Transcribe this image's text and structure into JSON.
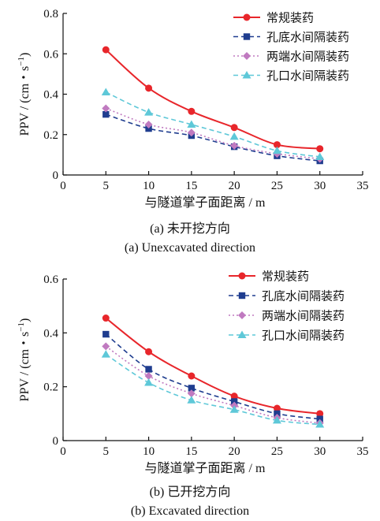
{
  "chart_data": [
    {
      "type": "line",
      "caption_cn": "(a) 未开挖方向",
      "caption_en": "(a) Unexcavated direction",
      "xlabel": "与隧道掌子面距离 / m",
      "ylabel": "PPV / (cm・s",
      "ylabel_sup": "−1",
      "ylabel_end": ")",
      "xlim": [
        0,
        35
      ],
      "ylim": [
        0,
        0.8
      ],
      "xticks": [
        "0",
        "5",
        "10",
        "15",
        "20",
        "25",
        "30",
        "35"
      ],
      "yticks": [
        "0",
        "0.2",
        "0.4",
        "0.6",
        "0.8"
      ],
      "x": [
        5,
        10,
        15,
        20,
        25,
        30
      ],
      "legend_position": "top-right",
      "series": [
        {
          "name": "常规装药",
          "values": [
            0.62,
            0.43,
            0.315,
            0.235,
            0.15,
            0.13
          ],
          "color": "#e8262b",
          "marker": "circle",
          "dash": "solid"
        },
        {
          "name": "孔底水间隔装药",
          "values": [
            0.3,
            0.23,
            0.195,
            0.14,
            0.095,
            0.07
          ],
          "color": "#1f3d8f",
          "marker": "square",
          "dash": "dashed"
        },
        {
          "name": "两端水间隔装药",
          "values": [
            0.33,
            0.25,
            0.21,
            0.145,
            0.105,
            0.08
          ],
          "color": "#c07ac0",
          "marker": "diamond",
          "dash": "dotted"
        },
        {
          "name": "孔口水间隔装药",
          "values": [
            0.41,
            0.31,
            0.25,
            0.19,
            0.12,
            0.09
          ],
          "color": "#5ec8d8",
          "marker": "triangle",
          "dash": "dashed"
        }
      ]
    },
    {
      "type": "line",
      "caption_cn": "(b) 已开挖方向",
      "caption_en": "(b) Excavated direction",
      "xlabel": "与隧道掌子面距离 / m",
      "ylabel": "PPV / (cm・s",
      "ylabel_sup": "−1",
      "ylabel_end": ")",
      "xlim": [
        0,
        35
      ],
      "ylim": [
        0,
        0.6
      ],
      "xticks": [
        "0",
        "5",
        "10",
        "15",
        "20",
        "25",
        "30",
        "35"
      ],
      "yticks": [
        "0",
        "0.2",
        "0.4",
        "0.6"
      ],
      "x": [
        5,
        10,
        15,
        20,
        25,
        30
      ],
      "legend_position": "top-right",
      "series": [
        {
          "name": "常规装药",
          "values": [
            0.455,
            0.33,
            0.24,
            0.165,
            0.12,
            0.1
          ],
          "color": "#e8262b",
          "marker": "circle",
          "dash": "solid"
        },
        {
          "name": "孔底水间隔装药",
          "values": [
            0.395,
            0.265,
            0.195,
            0.145,
            0.1,
            0.08
          ],
          "color": "#1f3d8f",
          "marker": "square",
          "dash": "dashed"
        },
        {
          "name": "两端水间隔装药",
          "values": [
            0.35,
            0.24,
            0.175,
            0.13,
            0.085,
            0.065
          ],
          "color": "#c07ac0",
          "marker": "diamond",
          "dash": "dotted"
        },
        {
          "name": "孔口水间隔装药",
          "values": [
            0.32,
            0.215,
            0.15,
            0.115,
            0.075,
            0.06
          ],
          "color": "#5ec8d8",
          "marker": "triangle",
          "dash": "dashed"
        }
      ]
    }
  ]
}
